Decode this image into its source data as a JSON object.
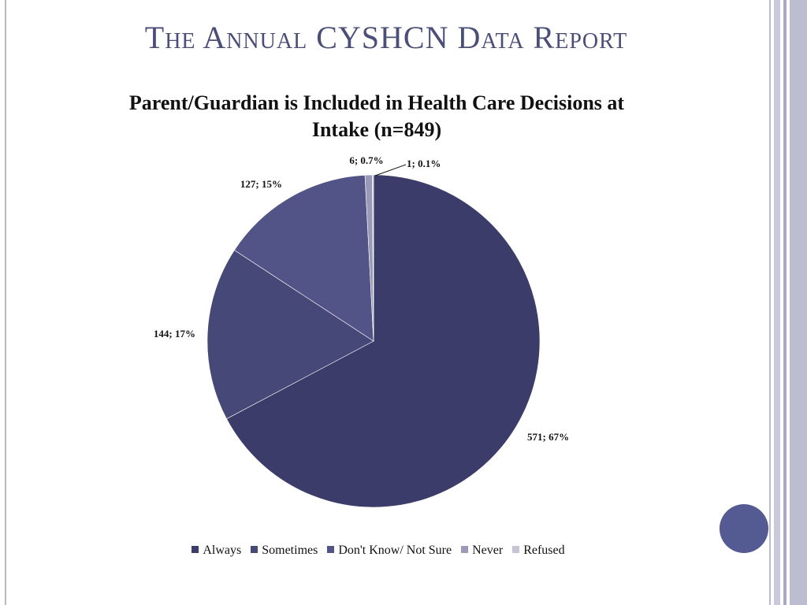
{
  "slide": {
    "title": "The Annual CYSHCN Data Report"
  },
  "colors": {
    "accent_circle": "#545a92"
  },
  "chart_data": {
    "type": "pie",
    "title": "Parent/Guardian is Included in Health Care Decisions at Intake (n=849)",
    "legend_position": "bottom",
    "categories": [
      "Always",
      "Sometimes",
      "Don't Know/ Not Sure",
      "Never",
      "Refused"
    ],
    "values": [
      571,
      144,
      127,
      6,
      1
    ],
    "percent_labels": [
      "67%",
      "17%",
      "15%",
      "0.7%",
      "0.1%"
    ],
    "data_labels": [
      "571; 67%",
      "144; 17%",
      "127; 15%",
      "6; 0.7%",
      "1; 0.1%"
    ],
    "colors": [
      "#3b3c69",
      "#464878",
      "#525488",
      "#9a9ab8",
      "#c5c5d6"
    ]
  }
}
